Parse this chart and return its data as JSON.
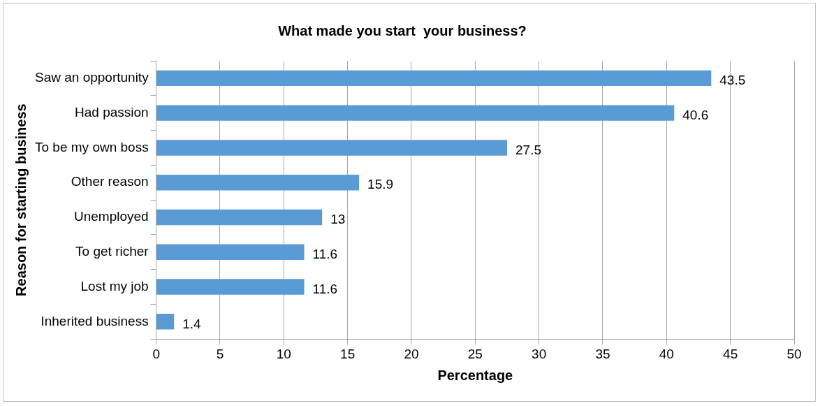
{
  "chart_data": {
    "type": "bar",
    "orientation": "horizontal",
    "title": "What made you start  your business?",
    "xlabel": "Percentage",
    "ylabel": "Reason for starting business",
    "categories": [
      "Saw an opportunity",
      "Had passion",
      "To be my own boss",
      "Other reason",
      "Unemployed",
      "To get richer",
      "Lost my job",
      "Inherited business"
    ],
    "values": [
      43.5,
      40.6,
      27.5,
      15.9,
      13,
      11.6,
      11.6,
      1.4
    ],
    "color": "#5b9bd5",
    "xlim": [
      0,
      50
    ],
    "xticks": [
      0,
      5,
      10,
      15,
      20,
      25,
      30,
      35,
      40,
      45,
      50
    ],
    "grid": "x",
    "data_labels": true,
    "legend": false
  }
}
